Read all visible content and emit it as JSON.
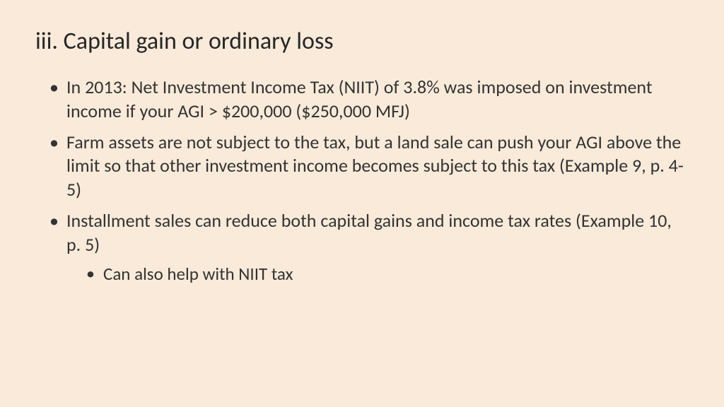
{
  "slide": {
    "title": "iii. Capital gain or ordinary loss",
    "bullets": [
      {
        "text": "In 2013: Net Investment Income Tax (NIIT) of 3.8% was imposed on investment income if your AGI > $200,000 ($250,000 MFJ)"
      },
      {
        "text": "Farm assets are not subject to the tax, but a land sale can push your AGI above the limit so that other investment income becomes subject to this tax (Example 9, p. 4-5)"
      },
      {
        "text": "Installment sales can reduce both capital gains and income tax rates (Example 10, p. 5)",
        "sub": [
          "Can also help with NIIT tax"
        ]
      }
    ]
  },
  "style": {
    "background_color": "#f9ead9",
    "title_fontsize": 34,
    "title_color": "#262626",
    "body_fontsize": 26,
    "body_color": "#333333",
    "sub_fontsize": 25,
    "font_family": "Calibri"
  }
}
